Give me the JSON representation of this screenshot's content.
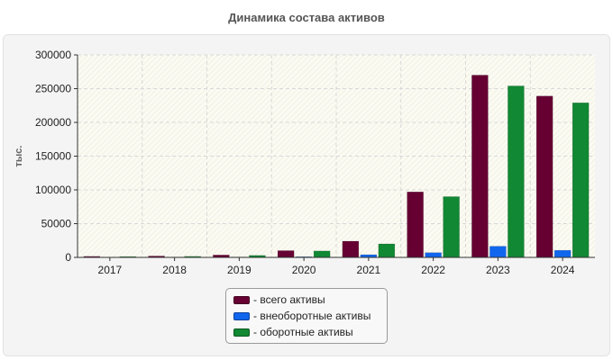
{
  "chart_data": {
    "type": "bar",
    "title": "Динамика состава активов",
    "ylabel": "тыс.",
    "xlabel": "",
    "categories": [
      "2017",
      "2018",
      "2019",
      "2020",
      "2021",
      "2022",
      "2023",
      "2024"
    ],
    "ylim": [
      0,
      300000
    ],
    "yticks": [
      0,
      50000,
      100000,
      150000,
      200000,
      250000,
      300000
    ],
    "ytick_labels": [
      "0",
      "50000",
      "100000",
      "150000",
      "200000",
      "250000",
      "300000"
    ],
    "grid": true,
    "legend_position": "bottom-center",
    "series": [
      {
        "name": "- всего активы",
        "color": "#660033",
        "values": [
          1500,
          2000,
          3500,
          10000,
          24000,
          97000,
          270000,
          239000
        ]
      },
      {
        "name": "- внеоборотные активы",
        "color": "#1166ee",
        "values": [
          400,
          500,
          600,
          1000,
          4000,
          7000,
          16500,
          10500
        ]
      },
      {
        "name": "- оборотные активы",
        "color": "#118833",
        "values": [
          1200,
          1500,
          2900,
          9500,
          20000,
          90000,
          254000,
          229000
        ]
      }
    ]
  }
}
